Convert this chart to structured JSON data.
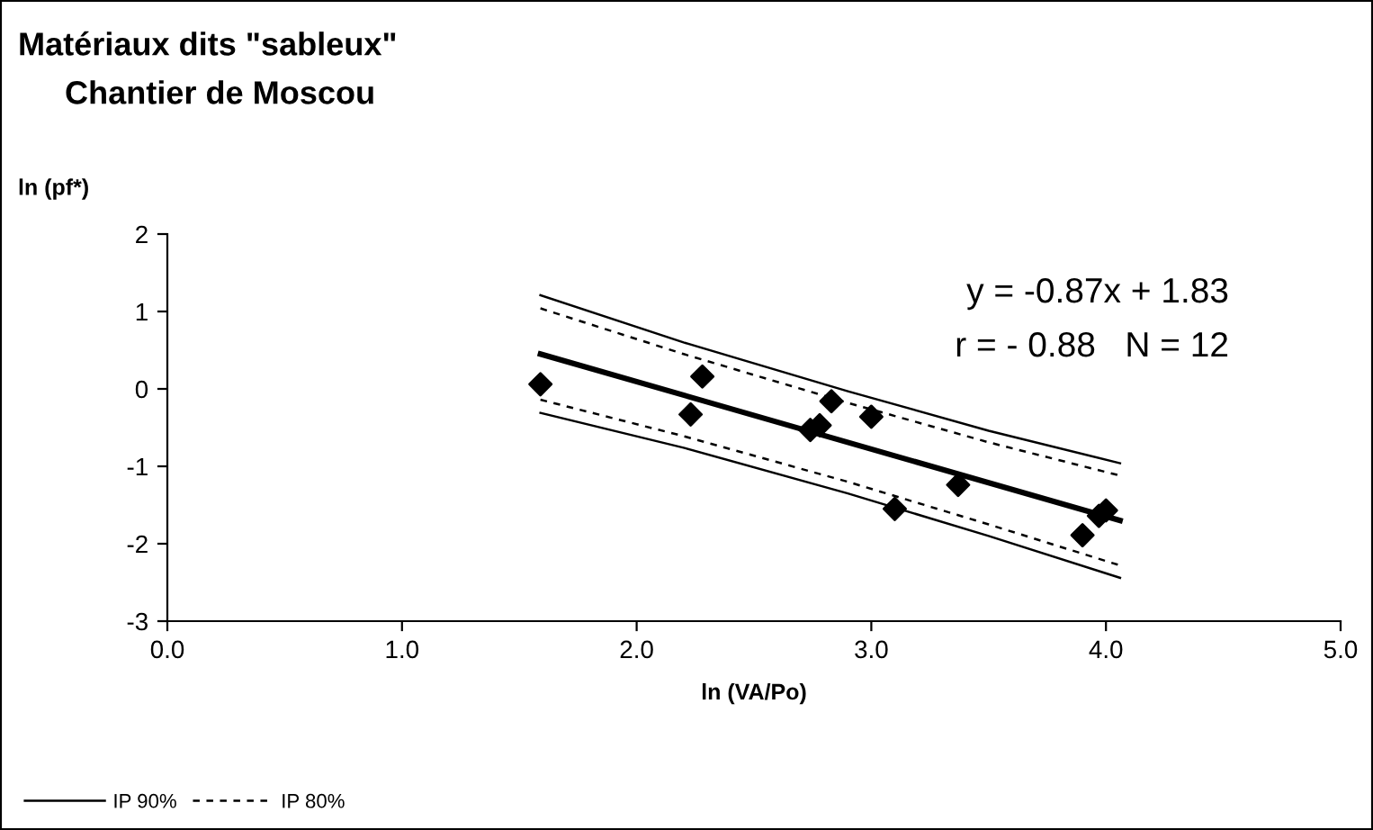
{
  "chart_data": {
    "type": "scatter",
    "title": "Matériaux dits \"sableux\"",
    "subtitle": "Chantier de Moscou",
    "xlabel": "ln (VA/Po)",
    "ylabel": "ln (pf*)",
    "xlim": [
      0,
      5
    ],
    "xticks": [
      {
        "value": 0,
        "label": "0.0"
      },
      {
        "value": 1,
        "label": "1.0"
      },
      {
        "value": 2,
        "label": "2.0"
      },
      {
        "value": 3,
        "label": "3.0"
      },
      {
        "value": 4,
        "label": "4.0"
      },
      {
        "value": 5,
        "label": "5.0"
      }
    ],
    "ylim": [
      -3,
      2
    ],
    "yticks": [
      -3,
      -2,
      -1,
      0,
      1,
      2
    ],
    "grid": false,
    "legend": "bottom left",
    "annotations": [
      "y = -0.87x + 1.83",
      "r = - 0.88   N = 12"
    ],
    "series": [
      {
        "color": "#000000",
        "marker": "diamond",
        "x": [
          1.59,
          2.28,
          2.23,
          2.83,
          2.78,
          2.74,
          3.0,
          3.37,
          3.1,
          4.0,
          3.97,
          3.9
        ],
        "values": [
          0.06,
          0.16,
          -0.33,
          -0.16,
          -0.47,
          -0.53,
          -0.36,
          -1.24,
          -1.55,
          -1.57,
          -1.64,
          -1.89
        ]
      },
      {
        "type": "line",
        "color": "#000000",
        "line_style": "solid",
        "x": [
          1.59,
          4.06
        ],
        "values": [
          0.45,
          -1.7
        ]
      },
      {
        "type": "line",
        "name": "IP 90%",
        "color": "#000000",
        "line_style": "solid",
        "x": [
          1.59,
          2.2,
          2.9,
          3.5,
          4.06
        ],
        "values": [
          1.21,
          0.6,
          -0.03,
          -0.54,
          -0.96
        ]
      },
      {
        "type": "line",
        "color": "#000000",
        "line_style": "solid",
        "x": [
          1.59,
          2.2,
          2.9,
          3.5,
          4.06
        ],
        "values": [
          -0.31,
          -0.76,
          -1.35,
          -1.9,
          -2.44
        ]
      },
      {
        "type": "line",
        "name": "IP 80%",
        "color": "#000000",
        "line_style": "dashed",
        "x": [
          1.59,
          2.2,
          2.9,
          3.5,
          4.06
        ],
        "values": [
          1.04,
          0.45,
          -0.18,
          -0.69,
          -1.12
        ]
      },
      {
        "type": "line",
        "color": "#000000",
        "line_style": "dashed",
        "x": [
          1.59,
          2.2,
          2.9,
          3.5,
          4.06
        ],
        "values": [
          -0.14,
          -0.61,
          -1.2,
          -1.75,
          -2.28
        ]
      }
    ]
  }
}
